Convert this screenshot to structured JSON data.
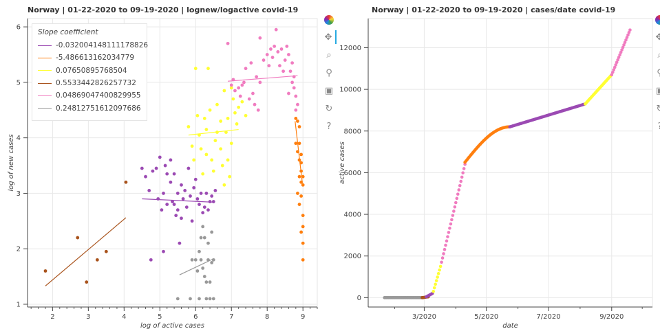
{
  "left": {
    "title": "Norway  |  01-22-2020 to 09-19-2020  |  lognew/logactive covid-19",
    "legend_title": "Slope coefficient"
  },
  "right": {
    "title": "Norway  |  01-22-2020 to 09-19-2020  |  cases/date covid-19"
  },
  "toolbar": {
    "icons": [
      "bokeh-logo-icon",
      "pan-icon",
      "box-zoom-icon",
      "wheel-zoom-icon",
      "save-icon",
      "reset-icon",
      "help-icon"
    ]
  },
  "chart_data": [
    {
      "type": "scatter",
      "title": "Norway  |  01-22-2020 to 09-19-2020  |  lognew/logactive covid-19",
      "xlabel": "log of active cases",
      "ylabel": "log of new cases",
      "xlim": [
        1.3,
        9.4
      ],
      "ylim": [
        0.95,
        6.15
      ],
      "xticks": [
        2,
        3,
        4,
        5,
        6,
        7,
        8,
        9
      ],
      "yticks": [
        1,
        2,
        3,
        4,
        5,
        6
      ],
      "grid": true,
      "legend_position": "top-left",
      "series": [
        {
          "name": "-0.032004148111178826",
          "color": "#9b4ab3",
          "points": [
            [
              4.5,
              3.45
            ],
            [
              4.6,
              3.3
            ],
            [
              4.7,
              3.05
            ],
            [
              4.75,
              1.8
            ],
            [
              4.8,
              3.4
            ],
            [
              4.9,
              3.45
            ],
            [
              4.95,
              2.9
            ],
            [
              5.0,
              3.65
            ],
            [
              5.05,
              2.7
            ],
            [
              5.1,
              1.95
            ],
            [
              5.1,
              3.0
            ],
            [
              5.15,
              3.5
            ],
            [
              5.2,
              3.35
            ],
            [
              5.2,
              2.8
            ],
            [
              5.3,
              3.6
            ],
            [
              5.3,
              3.2
            ],
            [
              5.35,
              2.85
            ],
            [
              5.4,
              2.8
            ],
            [
              5.4,
              3.35
            ],
            [
              5.45,
              2.6
            ],
            [
              5.5,
              3.0
            ],
            [
              5.5,
              2.7
            ],
            [
              5.55,
              2.1
            ],
            [
              5.6,
              2.55
            ],
            [
              5.6,
              3.15
            ],
            [
              5.65,
              2.9
            ],
            [
              5.7,
              3.05
            ],
            [
              5.75,
              2.75
            ],
            [
              5.8,
              3.45
            ],
            [
              5.85,
              2.95
            ],
            [
              5.9,
              2.5
            ],
            [
              5.95,
              3.1
            ],
            [
              6.0,
              3.25
            ],
            [
              6.05,
              2.9
            ],
            [
              6.1,
              2.8
            ],
            [
              6.15,
              3.0
            ],
            [
              6.2,
              2.65
            ],
            [
              6.25,
              2.75
            ],
            [
              6.3,
              3.0
            ],
            [
              6.35,
              2.7
            ],
            [
              6.4,
              2.85
            ],
            [
              6.45,
              2.95
            ],
            [
              6.5,
              2.85
            ],
            [
              6.55,
              3.05
            ]
          ],
          "fit": [
            [
              4.5,
              2.9
            ],
            [
              6.5,
              2.84
            ]
          ]
        },
        {
          "name": "-5.486613162034779",
          "color": "#ff7f0e",
          "points": [
            [
              8.8,
              4.35
            ],
            [
              8.85,
              4.3
            ],
            [
              8.8,
              3.9
            ],
            [
              8.85,
              3.75
            ],
            [
              8.9,
              4.2
            ],
            [
              8.9,
              3.6
            ],
            [
              8.95,
              3.55
            ],
            [
              8.9,
              3.3
            ],
            [
              8.95,
              3.4
            ],
            [
              9.0,
              3.3
            ],
            [
              8.95,
              3.2
            ],
            [
              9.0,
              3.15
            ],
            [
              8.85,
              3.0
            ],
            [
              8.9,
              2.8
            ],
            [
              8.95,
              2.95
            ],
            [
              9.0,
              2.6
            ],
            [
              9.0,
              2.4
            ],
            [
              8.95,
              2.3
            ],
            [
              9.0,
              2.1
            ],
            [
              9.0,
              1.8
            ],
            [
              8.9,
              3.9
            ],
            [
              8.95,
              3.7
            ]
          ],
          "fit": [
            [
              8.78,
              4.3
            ],
            [
              8.98,
              3.2
            ]
          ]
        },
        {
          "name": "0.07650895768504",
          "color": "#ffff33",
          "points": [
            [
              5.8,
              4.2
            ],
            [
              5.9,
              3.85
            ],
            [
              5.95,
              3.6
            ],
            [
              6.0,
              5.25
            ],
            [
              6.05,
              4.4
            ],
            [
              6.1,
              4.05
            ],
            [
              6.15,
              3.8
            ],
            [
              6.2,
              3.35
            ],
            [
              6.25,
              4.35
            ],
            [
              6.3,
              4.15
            ],
            [
              6.3,
              3.7
            ],
            [
              6.35,
              5.25
            ],
            [
              6.4,
              4.5
            ],
            [
              6.45,
              3.6
            ],
            [
              6.5,
              3.4
            ],
            [
              6.55,
              3.95
            ],
            [
              6.6,
              4.6
            ],
            [
              6.6,
              4.1
            ],
            [
              6.7,
              4.3
            ],
            [
              6.7,
              3.8
            ],
            [
              6.75,
              3.5
            ],
            [
              6.8,
              4.85
            ],
            [
              6.8,
              3.15
            ],
            [
              6.85,
              4.1
            ],
            [
              6.9,
              3.6
            ],
            [
              6.9,
              4.35
            ],
            [
              7.0,
              4.9
            ],
            [
              7.05,
              4.7
            ],
            [
              7.1,
              4.45
            ],
            [
              7.15,
              4.25
            ],
            [
              7.2,
              4.55
            ],
            [
              7.3,
              4.65
            ],
            [
              7.4,
              4.4
            ],
            [
              6.95,
              3.3
            ],
            [
              7.0,
              3.9
            ]
          ],
          "fit": [
            [
              5.8,
              4.05
            ],
            [
              7.2,
              4.15
            ]
          ]
        },
        {
          "name": "0.5533442826257732",
          "color": "#a9531c",
          "points": [
            [
              1.8,
              1.6
            ],
            [
              2.7,
              2.2
            ],
            [
              2.95,
              1.4
            ],
            [
              3.25,
              1.8
            ],
            [
              3.5,
              1.95
            ],
            [
              4.05,
              3.2
            ]
          ],
          "fit": [
            [
              1.8,
              1.33
            ],
            [
              4.05,
              2.56
            ]
          ]
        },
        {
          "name": "0.04869047400829955",
          "color": "#f07cc0",
          "points": [
            [
              6.9,
              5.7
            ],
            [
              7.0,
              4.95
            ],
            [
              7.05,
              5.05
            ],
            [
              7.1,
              4.85
            ],
            [
              7.2,
              4.9
            ],
            [
              7.25,
              4.75
            ],
            [
              7.3,
              4.95
            ],
            [
              7.35,
              5.0
            ],
            [
              7.4,
              5.25
            ],
            [
              7.5,
              4.7
            ],
            [
              7.55,
              5.35
            ],
            [
              7.6,
              4.8
            ],
            [
              7.65,
              4.6
            ],
            [
              7.7,
              5.1
            ],
            [
              7.75,
              4.5
            ],
            [
              7.8,
              5.0
            ],
            [
              7.8,
              5.8
            ],
            [
              7.9,
              5.4
            ],
            [
              8.0,
              5.5
            ],
            [
              8.05,
              5.3
            ],
            [
              8.1,
              5.6
            ],
            [
              8.15,
              5.45
            ],
            [
              8.2,
              5.65
            ],
            [
              8.25,
              5.95
            ],
            [
              8.3,
              5.55
            ],
            [
              8.35,
              5.3
            ],
            [
              8.4,
              5.6
            ],
            [
              8.45,
              5.2
            ],
            [
              8.5,
              5.4
            ],
            [
              8.55,
              5.65
            ],
            [
              8.6,
              5.5
            ],
            [
              8.65,
              5.2
            ],
            [
              8.7,
              5.0
            ],
            [
              8.75,
              4.9
            ],
            [
              8.8,
              4.75
            ],
            [
              8.85,
              4.6
            ],
            [
              8.6,
              4.8
            ],
            [
              8.75,
              5.1
            ],
            [
              8.8,
              4.5
            ],
            [
              8.7,
              5.35
            ]
          ],
          "fit": [
            [
              6.9,
              5.02
            ],
            [
              8.85,
              5.12
            ]
          ]
        },
        {
          "name": "0.24812751612097686",
          "color": "#999999",
          "points": [
            [
              5.5,
              1.1
            ],
            [
              5.85,
              1.1
            ],
            [
              5.9,
              1.8
            ],
            [
              6.0,
              1.8
            ],
            [
              6.05,
              1.6
            ],
            [
              6.1,
              1.1
            ],
            [
              6.1,
              1.95
            ],
            [
              6.15,
              2.2
            ],
            [
              6.15,
              1.8
            ],
            [
              6.2,
              2.4
            ],
            [
              6.25,
              2.2
            ],
            [
              6.25,
              1.5
            ],
            [
              6.3,
              1.4
            ],
            [
              6.3,
              1.1
            ],
            [
              6.35,
              1.8
            ],
            [
              6.35,
              2.1
            ],
            [
              6.4,
              1.1
            ],
            [
              6.4,
              1.4
            ],
            [
              6.45,
              2.3
            ],
            [
              6.45,
              1.75
            ],
            [
              6.5,
              1.8
            ],
            [
              6.5,
              1.1
            ],
            [
              6.2,
              1.65
            ]
          ],
          "fit": [
            [
              5.55,
              1.53
            ],
            [
              6.5,
              1.82
            ]
          ]
        }
      ]
    },
    {
      "type": "scatter",
      "title": "Norway  |  01-22-2020 to 09-19-2020  |  cases/date covid-19",
      "xlabel": "date",
      "ylabel": "active cases",
      "xlim": [
        "2020-01-06",
        "2020-10-11"
      ],
      "ylim": [
        -450,
        13400
      ],
      "xticks": [
        "3/2020",
        "5/2020",
        "7/2020",
        "9/2020"
      ],
      "xtick_dates": [
        "2020-03-01",
        "2020-05-01",
        "2020-07-01",
        "2020-09-01"
      ],
      "yticks": [
        0,
        2000,
        4000,
        6000,
        8000,
        10000,
        12000
      ],
      "grid": true,
      "note_colors": "points colored by regression segment",
      "series": [
        {
          "name": "",
          "color": "#999999",
          "x_start": "2020-01-22",
          "x_end": "2020-02-29",
          "y_start": 0,
          "y_end": 0
        },
        {
          "name": "",
          "color": "#a9531c",
          "x_start": "2020-02-28",
          "x_end": "2020-03-05",
          "y_start": 0,
          "y_end": 40
        },
        {
          "name": "",
          "color": "#9b4ab3",
          "x_start": "2020-03-03",
          "x_end": "2020-03-09",
          "y_start": 40,
          "y_end": 200
        },
        {
          "name": "",
          "color": "#ffff33",
          "x_start": "2020-03-10",
          "x_end": "2020-03-17",
          "y_start": 300,
          "y_end": 1500
        },
        {
          "name": "",
          "color": "#f07cc0",
          "x_start": "2020-03-18",
          "x_end": "2020-04-10",
          "y_start": 1700,
          "y_end": 6400
        },
        {
          "name": "",
          "color": "#ff7f0e",
          "x_start": "2020-04-10",
          "x_end": "2020-05-24",
          "y_start": 6500,
          "y_end": 8200
        },
        {
          "name": "",
          "color": "#9b4ab3",
          "x_start": "2020-05-24",
          "x_end": "2020-08-06",
          "y_start": 8200,
          "y_end": 9300
        },
        {
          "name": "",
          "color": "#ffff33",
          "x_start": "2020-08-06",
          "x_end": "2020-09-01",
          "y_start": 9300,
          "y_end": 10700
        },
        {
          "name": "",
          "color": "#f07cc0",
          "x_start": "2020-09-01",
          "x_end": "2020-09-19",
          "y_start": 10700,
          "y_end": 12850
        }
      ]
    }
  ]
}
